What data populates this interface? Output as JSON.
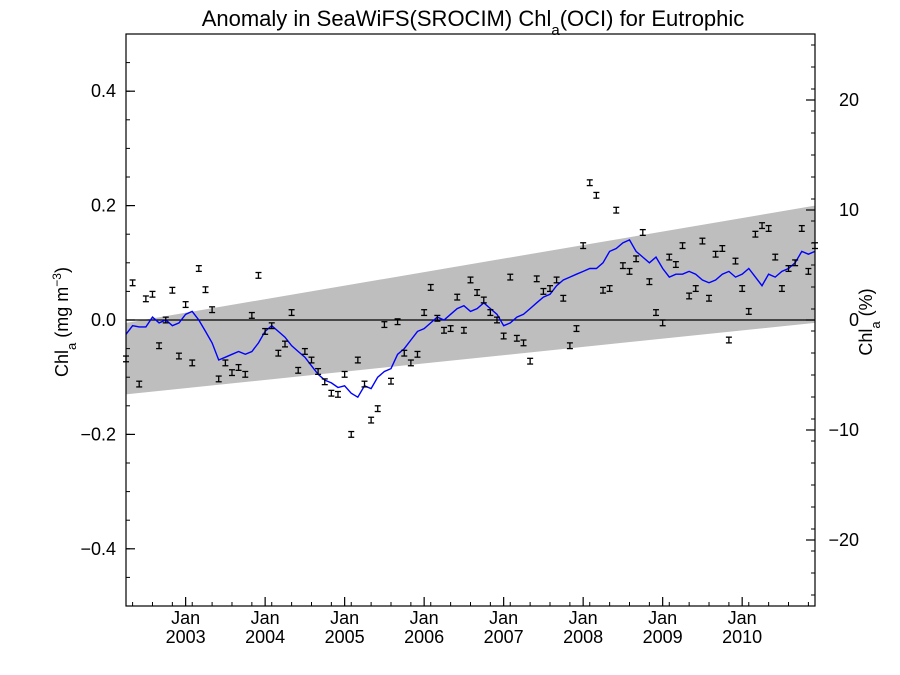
{
  "chart_data": {
    "type": "line",
    "title": {
      "main": "Anomaly in SeaWiFS(SROCIM) Chl",
      "sub": "a",
      "tail": "(OCI) for Eutrophic"
    },
    "ylabel_left": {
      "main": "Chl",
      "sub": "a",
      "tail": " (mg m",
      "sup": "−3",
      "end": ")"
    },
    "ylabel_right": {
      "main": "Chl",
      "sub": "a",
      "tail": " (%)"
    },
    "x_month_label": "Jan",
    "x_years": [
      "2003",
      "2004",
      "2005",
      "2006",
      "2007",
      "2008",
      "2009",
      "2010"
    ],
    "xlim": [
      2002.292,
      2010.958
    ],
    "ylim": [
      -0.5,
      0.5
    ],
    "y_ticks": [
      -0.4,
      -0.2,
      0.0,
      0.2,
      0.4
    ],
    "y_tick_labels": [
      "−0.4",
      "−0.2",
      "0.0",
      "0.2",
      "0.4"
    ],
    "y_right_ticks": [
      -20,
      -10,
      0,
      10,
      20
    ],
    "y_right_tick_labels": [
      "−20",
      "−10",
      "0",
      "10",
      "20"
    ],
    "y_right_range": [
      -26,
      26
    ],
    "colors": {
      "running_mean": "#0000ff",
      "band": "#bebebe",
      "error_bars": "#000000",
      "zero_line": "#000000"
    },
    "trend_band": {
      "x": [
        2002.292,
        2010.958
      ],
      "upper": [
        -0.005,
        0.2
      ],
      "lower": [
        -0.13,
        -0.005
      ]
    },
    "running_mean": {
      "name": "",
      "x": [
        2002.292,
        2002.375,
        2002.458,
        2002.542,
        2002.625,
        2002.708,
        2002.792,
        2002.875,
        2002.958,
        2003.042,
        2003.125,
        2003.208,
        2003.292,
        2003.375,
        2003.458,
        2003.542,
        2003.625,
        2003.708,
        2003.792,
        2003.875,
        2003.958,
        2004.042,
        2004.125,
        2004.208,
        2004.292,
        2004.375,
        2004.458,
        2004.542,
        2004.625,
        2004.708,
        2004.792,
        2004.875,
        2004.958,
        2005.042,
        2005.125,
        2005.208,
        2005.292,
        2005.375,
        2005.458,
        2005.542,
        2005.625,
        2005.708,
        2005.792,
        2005.875,
        2005.958,
        2006.042,
        2006.125,
        2006.208,
        2006.292,
        2006.375,
        2006.458,
        2006.542,
        2006.625,
        2006.708,
        2006.792,
        2006.875,
        2006.958,
        2007.042,
        2007.125,
        2007.208,
        2007.292,
        2007.375,
        2007.458,
        2007.542,
        2007.625,
        2007.708,
        2007.792,
        2007.875,
        2007.958,
        2008.042,
        2008.125,
        2008.208,
        2008.292,
        2008.375,
        2008.458,
        2008.542,
        2008.625,
        2008.708,
        2008.792,
        2008.875,
        2008.958,
        2009.042,
        2009.125,
        2009.208,
        2009.292,
        2009.375,
        2009.458,
        2009.542,
        2009.625,
        2009.708,
        2009.792,
        2009.875,
        2009.958,
        2010.042,
        2010.125,
        2010.208,
        2010.292,
        2010.375,
        2010.458,
        2010.542,
        2010.625,
        2010.708,
        2010.792,
        2010.875,
        2010.958
      ],
      "values": [
        -0.025,
        -0.01,
        -0.012,
        -0.012,
        0.005,
        -0.005,
        0.0,
        -0.01,
        -0.005,
        0.01,
        0.015,
        0.0,
        -0.02,
        -0.04,
        -0.07,
        -0.065,
        -0.06,
        -0.055,
        -0.06,
        -0.055,
        -0.04,
        -0.02,
        -0.01,
        -0.02,
        -0.03,
        -0.045,
        -0.055,
        -0.065,
        -0.08,
        -0.095,
        -0.105,
        -0.11,
        -0.118,
        -0.115,
        -0.128,
        -0.135,
        -0.115,
        -0.12,
        -0.1,
        -0.09,
        -0.085,
        -0.06,
        -0.05,
        -0.035,
        -0.02,
        -0.015,
        -0.005,
        0.005,
        0.0,
        0.01,
        0.02,
        0.025,
        0.015,
        0.02,
        0.03,
        0.02,
        0.01,
        -0.01,
        -0.005,
        0.005,
        0.01,
        0.02,
        0.03,
        0.04,
        0.045,
        0.06,
        0.07,
        0.075,
        0.08,
        0.085,
        0.09,
        0.09,
        0.1,
        0.12,
        0.125,
        0.135,
        0.14,
        0.12,
        0.11,
        0.1,
        0.11,
        0.09,
        0.075,
        0.08,
        0.08,
        0.085,
        0.08,
        0.07,
        0.065,
        0.07,
        0.08,
        0.085,
        0.075,
        0.08,
        0.09,
        0.075,
        0.06,
        0.08,
        0.075,
        0.085,
        0.09,
        0.1,
        0.12,
        0.115,
        0.12
      ]
    },
    "monthly_anomalies": {
      "x": [
        2002.292,
        2002.375,
        2002.458,
        2002.542,
        2002.625,
        2002.708,
        2002.792,
        2002.875,
        2002.958,
        2003.042,
        2003.125,
        2003.208,
        2003.292,
        2003.375,
        2003.458,
        2003.542,
        2003.625,
        2003.708,
        2003.792,
        2003.875,
        2003.958,
        2004.042,
        2004.125,
        2004.208,
        2004.292,
        2004.375,
        2004.458,
        2004.542,
        2004.625,
        2004.708,
        2004.792,
        2004.875,
        2004.958,
        2005.042,
        2005.125,
        2005.208,
        2005.292,
        2005.375,
        2005.458,
        2005.542,
        2005.625,
        2005.708,
        2005.792,
        2005.875,
        2005.958,
        2006.042,
        2006.125,
        2006.208,
        2006.292,
        2006.375,
        2006.458,
        2006.542,
        2006.625,
        2006.708,
        2006.792,
        2006.875,
        2006.958,
        2007.042,
        2007.125,
        2007.208,
        2007.292,
        2007.375,
        2007.458,
        2007.542,
        2007.625,
        2007.708,
        2007.792,
        2007.875,
        2007.958,
        2008.042,
        2008.125,
        2008.208,
        2008.292,
        2008.375,
        2008.458,
        2008.542,
        2008.625,
        2008.708,
        2008.792,
        2008.875,
        2008.958,
        2009.042,
        2009.125,
        2009.208,
        2009.292,
        2009.375,
        2009.458,
        2009.542,
        2009.625,
        2009.708,
        2009.792,
        2009.875,
        2009.958,
        2010.042,
        2010.125,
        2010.208,
        2010.292,
        2010.375,
        2010.458,
        2010.542,
        2010.625,
        2010.708,
        2010.792,
        2010.875,
        2010.958
      ],
      "values": [
        -0.068,
        0.065,
        -0.112,
        0.037,
        0.045,
        -0.045,
        0.0,
        0.052,
        -0.063,
        0.027,
        -0.075,
        0.09,
        0.053,
        0.018,
        -0.103,
        -0.075,
        -0.092,
        -0.083,
        -0.095,
        0.008,
        0.078,
        -0.02,
        -0.01,
        -0.058,
        -0.042,
        0.013,
        -0.088,
        -0.055,
        -0.07,
        -0.09,
        -0.108,
        -0.128,
        -0.13,
        -0.095,
        -0.2,
        -0.07,
        -0.112,
        -0.175,
        -0.155,
        -0.008,
        -0.107,
        -0.003,
        -0.058,
        -0.075,
        -0.06,
        0.013,
        0.057,
        0.003,
        -0.018,
        -0.015,
        0.04,
        -0.018,
        0.07,
        0.048,
        0.035,
        0.013,
        0.0,
        -0.028,
        0.075,
        -0.032,
        -0.04,
        -0.072,
        0.072,
        0.05,
        0.055,
        0.07,
        0.038,
        -0.045,
        -0.015,
        0.13,
        0.24,
        0.218,
        0.052,
        0.055,
        0.192,
        0.095,
        0.085,
        0.107,
        0.153,
        0.067,
        0.013,
        -0.005,
        0.11,
        0.097,
        0.13,
        0.042,
        0.055,
        0.138,
        0.038,
        0.115,
        0.125,
        -0.035,
        0.103,
        0.055,
        0.015,
        0.15,
        0.165,
        0.16,
        0.11,
        0.055,
        0.09,
        0.1,
        0.16,
        0.085,
        0.13
      ],
      "err": 0.005
    }
  }
}
